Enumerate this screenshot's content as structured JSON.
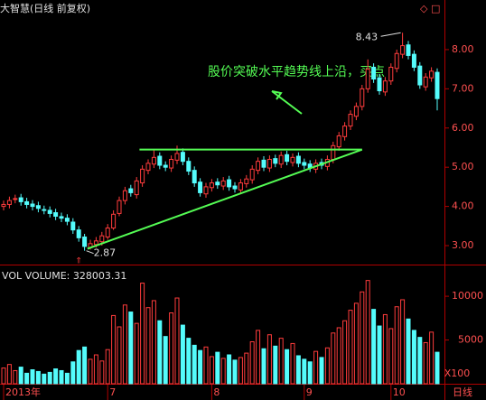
{
  "chart_data": [
    {
      "type": "candlestick",
      "title": "大智慧(日线 前复权)",
      "annotation": "股价突破水平趋势线上沿，买点",
      "period": "日线",
      "up_color": "#ff3c3c",
      "down_color": "#54fcfc",
      "line_color": "#54fc54",
      "categories": [
        "2013年",
        null,
        null,
        null,
        null,
        null,
        null,
        null,
        null,
        null,
        null,
        null,
        null,
        null,
        null,
        null,
        null,
        null,
        "7",
        null,
        null,
        null,
        null,
        null,
        null,
        null,
        null,
        null,
        null,
        null,
        null,
        null,
        null,
        null,
        null,
        null,
        "8",
        null,
        null,
        null,
        null,
        null,
        null,
        null,
        null,
        null,
        null,
        null,
        null,
        null,
        null,
        null,
        "9",
        null,
        null,
        null,
        null,
        null,
        null,
        null,
        null,
        null,
        null,
        null,
        null,
        null,
        null,
        "10",
        null,
        null,
        null,
        null,
        null,
        null,
        null,
        null
      ],
      "open": [
        4.0,
        4.05,
        4.18,
        4.22,
        4.12,
        4.06,
        4.02,
        3.92,
        3.9,
        3.84,
        3.74,
        3.7,
        3.6,
        3.4,
        3.22,
        2.95,
        3.03,
        3.1,
        3.22,
        3.45,
        3.82,
        4.15,
        4.45,
        4.3,
        4.6,
        4.92,
        5.08,
        5.28,
        5.05,
        4.98,
        5.18,
        5.38,
        5.15,
        4.92,
        4.62,
        4.32,
        4.48,
        4.62,
        4.52,
        4.68,
        4.52,
        4.42,
        4.58,
        4.68,
        4.92,
        5.18,
        4.98,
        5.22,
        5.08,
        5.32,
        5.12,
        5.28,
        5.12,
        5.08,
        4.95,
        5.12,
        5.02,
        5.2,
        5.52,
        5.78,
        6.05,
        6.3,
        6.55,
        7.0,
        7.55,
        7.28,
        6.92,
        7.2,
        7.52,
        7.88,
        8.12,
        7.88,
        7.58,
        7.05,
        7.28,
        7.42
      ],
      "high": [
        4.15,
        4.25,
        4.3,
        4.32,
        4.22,
        4.16,
        4.12,
        4.02,
        4.0,
        3.94,
        3.84,
        3.8,
        3.7,
        3.5,
        3.3,
        3.15,
        3.22,
        3.35,
        3.55,
        3.9,
        4.25,
        4.5,
        4.55,
        4.75,
        5.05,
        5.2,
        5.45,
        5.38,
        5.15,
        5.3,
        5.55,
        5.48,
        5.25,
        5.02,
        4.72,
        4.6,
        4.7,
        4.72,
        4.75,
        4.78,
        4.62,
        4.7,
        4.8,
        5.05,
        5.25,
        5.28,
        5.3,
        5.32,
        5.4,
        5.42,
        5.35,
        5.38,
        5.22,
        5.18,
        5.2,
        5.22,
        5.3,
        5.65,
        5.9,
        6.15,
        6.45,
        6.65,
        7.1,
        7.75,
        7.65,
        7.38,
        7.3,
        7.65,
        8.0,
        8.43,
        8.22,
        7.98,
        7.68,
        7.4,
        7.55,
        7.52
      ],
      "low": [
        3.9,
        3.95,
        4.08,
        4.02,
        3.95,
        3.9,
        3.85,
        3.8,
        3.72,
        3.65,
        3.6,
        3.52,
        3.3,
        3.1,
        2.87,
        2.9,
        2.95,
        3.0,
        3.15,
        3.4,
        3.75,
        4.05,
        4.25,
        4.2,
        4.5,
        4.82,
        4.98,
        4.95,
        4.9,
        4.88,
        5.08,
        5.05,
        4.8,
        4.5,
        4.25,
        4.22,
        4.38,
        4.45,
        4.42,
        4.4,
        4.35,
        4.32,
        4.48,
        4.58,
        4.82,
        4.9,
        4.88,
        5.0,
        4.98,
        5.05,
        5.02,
        5.0,
        4.95,
        4.88,
        4.85,
        4.95,
        4.92,
        5.1,
        5.42,
        5.68,
        5.95,
        6.2,
        6.45,
        6.9,
        7.15,
        6.85,
        6.82,
        7.1,
        7.42,
        7.78,
        7.75,
        7.45,
        7.0,
        6.95,
        7.18,
        6.45
      ],
      "close": [
        4.05,
        4.15,
        4.2,
        4.12,
        4.05,
        4.0,
        3.95,
        3.9,
        3.82,
        3.75,
        3.7,
        3.62,
        3.4,
        3.2,
        2.98,
        3.05,
        3.12,
        3.25,
        3.45,
        3.8,
        4.15,
        4.4,
        4.35,
        4.65,
        4.95,
        5.1,
        5.25,
        5.05,
        5.0,
        5.2,
        5.35,
        5.15,
        4.9,
        4.6,
        4.35,
        4.5,
        4.6,
        4.55,
        4.65,
        4.5,
        4.45,
        4.6,
        4.7,
        4.95,
        5.15,
        5.0,
        5.2,
        5.1,
        5.3,
        5.15,
        5.25,
        5.1,
        5.05,
        4.98,
        5.1,
        5.05,
        5.2,
        5.55,
        5.8,
        6.05,
        6.35,
        6.55,
        7.0,
        7.5,
        7.25,
        6.95,
        7.2,
        7.55,
        7.9,
        8.1,
        7.85,
        7.55,
        7.1,
        7.3,
        7.45,
        6.75
      ],
      "trendlines": [
        {
          "x": [
            23.5,
            62
          ],
          "y": [
            5.45,
            5.45
          ]
        },
        {
          "x": [
            14.5,
            62
          ],
          "y": [
            2.92,
            5.45
          ]
        }
      ],
      "ylim": [
        2.54,
        9.15
      ],
      "yticks": [
        {
          "value": 3,
          "label": "3.00"
        },
        {
          "value": 4,
          "label": "4.00"
        },
        {
          "value": 5,
          "label": "5.00"
        },
        {
          "value": 6,
          "label": "6.00"
        },
        {
          "value": 7,
          "label": "7.00"
        },
        {
          "value": 8,
          "label": "8.00"
        }
      ]
    },
    {
      "type": "bar",
      "title": "VOL VOLUME: 328003.31",
      "unit": "X100",
      "values": [
        1800,
        2200,
        1500,
        1900,
        1200,
        1600,
        1400,
        1100,
        1300,
        1700,
        1500,
        1200,
        2500,
        3800,
        4200,
        2800,
        3300,
        2600,
        3900,
        7800,
        6500,
        9000,
        8200,
        6900,
        11500,
        8700,
        9500,
        7200,
        5400,
        8100,
        9800,
        6700,
        5200,
        4400,
        3800,
        4200,
        3100,
        3600,
        2900,
        3300,
        2700,
        3000,
        3500,
        4800,
        6100,
        4000,
        5600,
        4300,
        5200,
        3900,
        4600,
        3200,
        2800,
        2500,
        3700,
        3000,
        4100,
        5800,
        6400,
        7200,
        8400,
        9200,
        10500,
        11800,
        8500,
        6600,
        7900,
        6300,
        8800,
        9600,
        7400,
        6100,
        5300,
        4700,
        5900,
        3600
      ],
      "ylim": [
        0,
        12900
      ],
      "yticks": [
        5000,
        10000
      ]
    }
  ]
}
